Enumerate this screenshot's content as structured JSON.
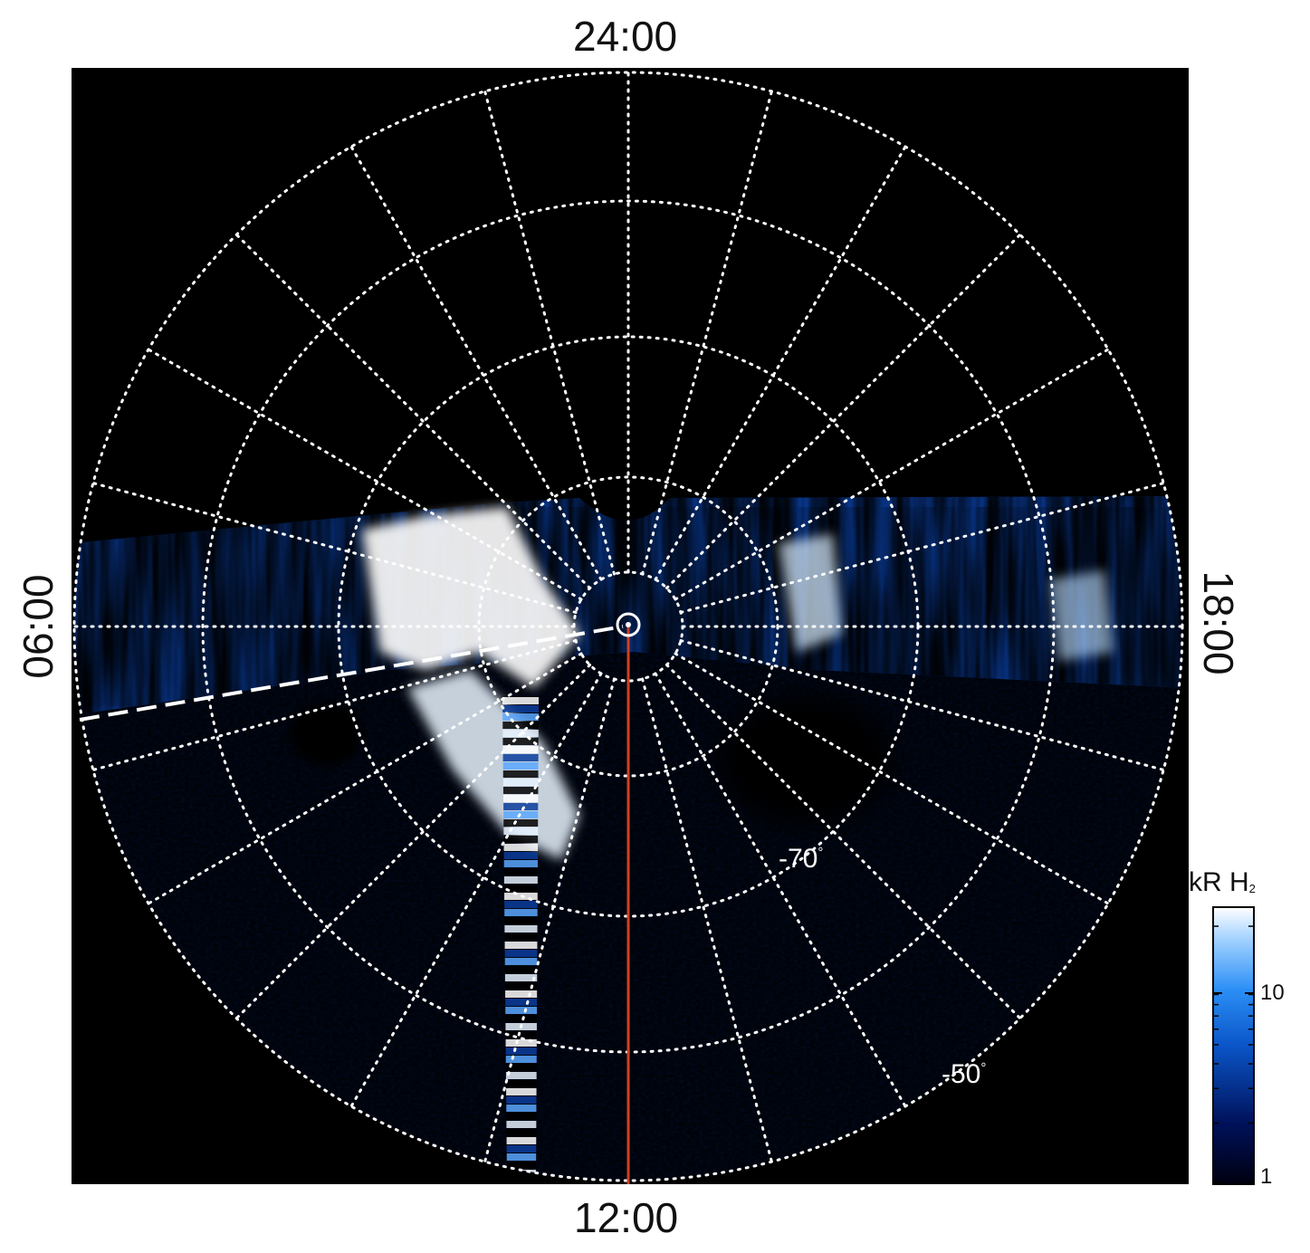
{
  "local_time_labels": {
    "top": "24:00",
    "bottom": "12:00",
    "left": "06:00",
    "right": "18:00"
  },
  "latitude_labels": [
    {
      "text": "-70",
      "degree": "°"
    },
    {
      "text": "-50",
      "degree": "°"
    }
  ],
  "colorbar": {
    "title_main": "kR H",
    "title_sub": "2",
    "scale": "log",
    "range": [
      1,
      25
    ],
    "ticks": [
      "10",
      "1"
    ],
    "colors": [
      "#000010",
      "#00115a",
      "#0a55c8",
      "#2a8ef5",
      "#9fd0ff",
      "#ffffff"
    ]
  },
  "image_colors": {
    "background": "#000000",
    "grid": "#ffffff",
    "noon_meridian": "#d2401e",
    "dashed_line": "#ffffff"
  }
}
